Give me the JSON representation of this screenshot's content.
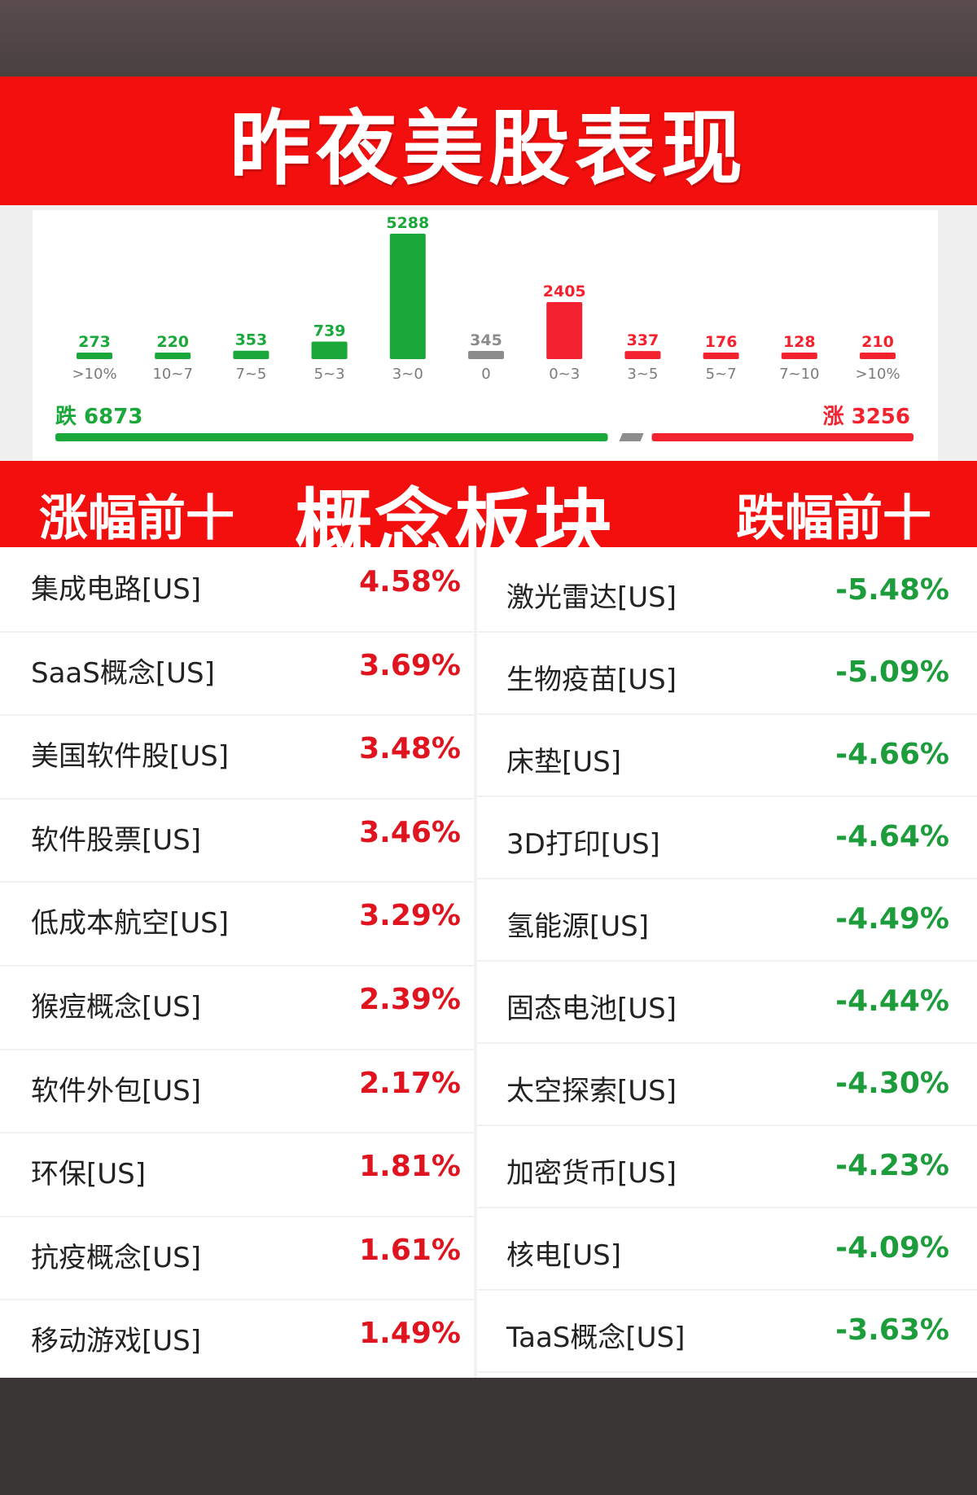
{
  "header": {
    "title": "昨夜美股表现"
  },
  "chart_data": {
    "type": "bar",
    "categories": [
      ">10%",
      "10~7",
      "7~5",
      "5~3",
      "3~0",
      "0",
      "0~3",
      "3~5",
      "5~7",
      "7~10",
      ">10%"
    ],
    "values": [
      273,
      220,
      353,
      739,
      5288,
      345,
      2405,
      337,
      176,
      128,
      210
    ],
    "bar_colors": [
      "#1aa83a",
      "#1aa83a",
      "#1aa83a",
      "#1aa83a",
      "#1aa83a",
      "#8c8c8c",
      "#f3222f",
      "#f3222f",
      "#f3222f",
      "#f3222f",
      "#f3222f"
    ],
    "title": "",
    "xlabel": "",
    "ylabel": "",
    "ylim": [
      0,
      5288
    ],
    "grid": false
  },
  "summary": {
    "down_label": "跌 6873",
    "up_label": "涨 3256",
    "down_count": 6873,
    "flat_count": 345,
    "up_count": 3256,
    "down_color": "#1aa83a",
    "flat_color": "#8c8c8c",
    "up_color": "#f3222f"
  },
  "concept_band": {
    "left": "涨幅前十",
    "center": "概念板块",
    "right": "跌幅前十"
  },
  "top_gainers": [
    {
      "name": "集成电路[US]",
      "pct": "4.58%"
    },
    {
      "name": "SaaS概念[US]",
      "pct": "3.69%"
    },
    {
      "name": "美国软件股[US]",
      "pct": "3.48%"
    },
    {
      "name": "软件股票[US]",
      "pct": "3.46%"
    },
    {
      "name": "低成本航空[US]",
      "pct": "3.29%"
    },
    {
      "name": "猴痘概念[US]",
      "pct": "2.39%"
    },
    {
      "name": "软件外包[US]",
      "pct": "2.17%"
    },
    {
      "name": "环保[US]",
      "pct": "1.81%"
    },
    {
      "name": "抗疫概念[US]",
      "pct": "1.61%"
    },
    {
      "name": "移动游戏[US]",
      "pct": "1.49%"
    }
  ],
  "top_losers": [
    {
      "name": "激光雷达[US]",
      "pct": "-5.48%"
    },
    {
      "name": "生物疫苗[US]",
      "pct": "-5.09%"
    },
    {
      "name": "床垫[US]",
      "pct": "-4.66%"
    },
    {
      "name": "3D打印[US]",
      "pct": "-4.64%"
    },
    {
      "name": "氢能源[US]",
      "pct": "-4.49%"
    },
    {
      "name": "固态电池[US]",
      "pct": "-4.44%"
    },
    {
      "name": "太空探索[US]",
      "pct": "-4.30%"
    },
    {
      "name": "加密货币[US]",
      "pct": "-4.23%"
    },
    {
      "name": "核电[US]",
      "pct": "-4.09%"
    },
    {
      "name": "TaaS概念[US]",
      "pct": "-3.63%"
    }
  ],
  "colors": {
    "accent_red": "#f40f0f",
    "gain_red": "#e0141e",
    "loss_green": "#1d9c3b"
  }
}
